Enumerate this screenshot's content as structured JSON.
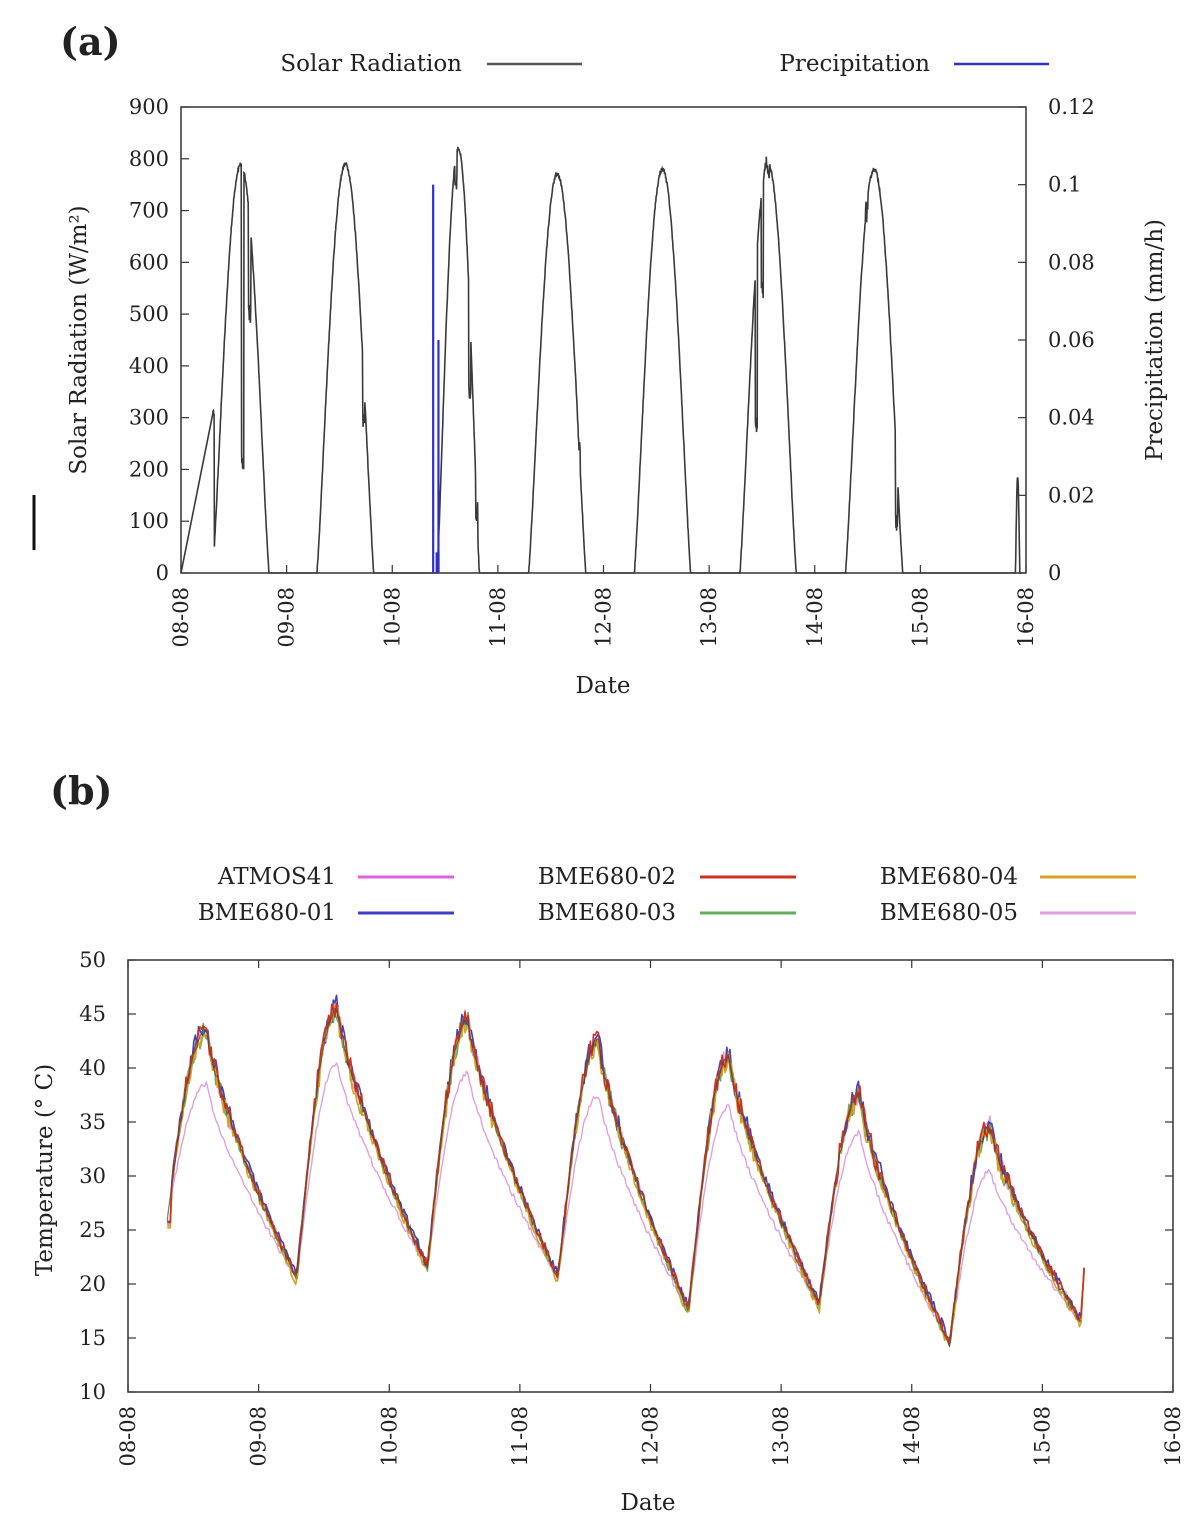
{
  "colors": {
    "solar": "#3a3a3a",
    "precip": "#3030c8",
    "ATMOS41": "#e060e0",
    "BME680-01": "#4040c0",
    "BME680-02": "#d03020",
    "BME680-03": "#60b060",
    "BME680-04": "#d8a020",
    "BME680-05": "#e0a0e0"
  },
  "chart_data": [
    {
      "panel_label": "(a)",
      "type": "line",
      "xlabel": "Date",
      "ylabel": "Solar Radiation (W/m²)",
      "y2label": "Precipitation (mm/h)",
      "xticks": [
        "08-08",
        "09-08",
        "10-08",
        "11-08",
        "12-08",
        "13-08",
        "14-08",
        "15-08",
        "16-08"
      ],
      "xlim": [
        "08-08",
        "16-08"
      ],
      "ylim": [
        0,
        900
      ],
      "yticks": [
        "0",
        "100",
        "200",
        "300",
        "400",
        "500",
        "600",
        "700",
        "800",
        "900"
      ],
      "y2lim": [
        0,
        0.12
      ],
      "y2ticks": [
        "0",
        "0.02",
        "0.04",
        "0.06",
        "0.08",
        "0.1",
        "0.12"
      ],
      "legend": {
        "placement": "top",
        "entries": [
          "Solar Radiation",
          "Precipitation"
        ]
      },
      "series": [
        {
          "name": "Solar Radiation",
          "axis": "left",
          "days": [
            {
              "day": "08-08",
              "sunrise": 7.2,
              "sunset": 20.0,
              "peak": 790,
              "start_partial": 310,
              "dips": [
                [
                  14,
                  210
                ],
                [
                  15.6,
                  500
                ]
              ]
            },
            {
              "day": "09-08",
              "sunrise": 6.9,
              "sunset": 19.8,
              "peak": 790,
              "dips": [
                [
                  17.5,
                  290
                ]
              ]
            },
            {
              "day": "10-08",
              "sunrise": 10.2,
              "sunset": 19.8,
              "peak": 820,
              "dips": [
                [
                  14.5,
                  760
                ],
                [
                  17.6,
                  350
                ],
                [
                  19.2,
                  120
                ]
              ]
            },
            {
              "day": "11-08",
              "sunrise": 7.0,
              "sunset": 20.0,
              "peak": 770,
              "dips": [
                [
                  18.5,
                  250
                ]
              ]
            },
            {
              "day": "12-08",
              "sunrise": 7.0,
              "sunset": 19.8,
              "peak": 780,
              "dips": []
            },
            {
              "day": "13-08",
              "sunrise": 7.0,
              "sunset": 19.8,
              "peak": 790,
              "dips": [
                [
                  10.7,
                  290
                ],
                [
                  12.1,
                  550
                ],
                [
                  12.8,
                  790
                ],
                [
                  13.4,
                  770
                ]
              ]
            },
            {
              "day": "14-08",
              "sunrise": 7.0,
              "sunset": 20.0,
              "peak": 780,
              "dips": [
                [
                  11.8,
                  700
                ],
                [
                  18.6,
                  100
                ]
              ]
            },
            {
              "day": "15-08",
              "sunrise": 21.6,
              "sunset": 22.6,
              "peak": 185,
              "dips": []
            }
          ]
        },
        {
          "name": "Precipitation",
          "axis": "right",
          "events": [
            {
              "date": "10-08",
              "hour": 9.3,
              "value": 0.1
            },
            {
              "date": "10-08",
              "hour": 10.5,
              "value": 0.06
            }
          ]
        }
      ]
    },
    {
      "panel_label": "(b)",
      "type": "line",
      "xlabel": "Date",
      "ylabel": "Temperature (° C)",
      "xticks": [
        "08-08",
        "09-08",
        "10-08",
        "11-08",
        "12-08",
        "13-08",
        "14-08",
        "15-08",
        "16-08"
      ],
      "xlim": [
        "08-08",
        "16-08"
      ],
      "ylim": [
        10,
        50
      ],
      "yticks": [
        "10",
        "15",
        "20",
        "25",
        "30",
        "35",
        "40",
        "45",
        "50"
      ],
      "legend": {
        "placement": "top",
        "entries": [
          "ATMOS41",
          "BME680-02",
          "BME680-04",
          "BME680-01",
          "BME680-03",
          "BME680-05"
        ]
      },
      "daily": [
        {
          "day": "08-08",
          "start": 25.5,
          "max": 43.5,
          "min_next": 20.5
        },
        {
          "day": "09-08",
          "max": 45.5,
          "min_next": 21.5
        },
        {
          "day": "10-08",
          "max": 44.5,
          "min_next": 20.5
        },
        {
          "day": "11-08",
          "max": 42.5,
          "min_next": 17.5
        },
        {
          "day": "12-08",
          "max": 41.0,
          "min_next": 18.0
        },
        {
          "day": "13-08",
          "max": 37.5,
          "min_next": 14.5
        },
        {
          "day": "14-08",
          "max": 34.5,
          "min_next": 16.5,
          "end": 21.5
        }
      ],
      "atmos_daily_max": [
        38.5,
        40.5,
        39.5,
        37.5,
        36.5,
        34.0,
        30.5
      ],
      "series": [
        {
          "name": "ATMOS41",
          "offset": 0
        },
        {
          "name": "BME680-01",
          "offset": 0.3
        },
        {
          "name": "BME680-02",
          "offset": 0.2
        },
        {
          "name": "BME680-03",
          "offset": -0.1
        },
        {
          "name": "BME680-04",
          "offset": -0.3
        },
        {
          "name": "BME680-05",
          "offset": 0.1
        }
      ]
    }
  ]
}
